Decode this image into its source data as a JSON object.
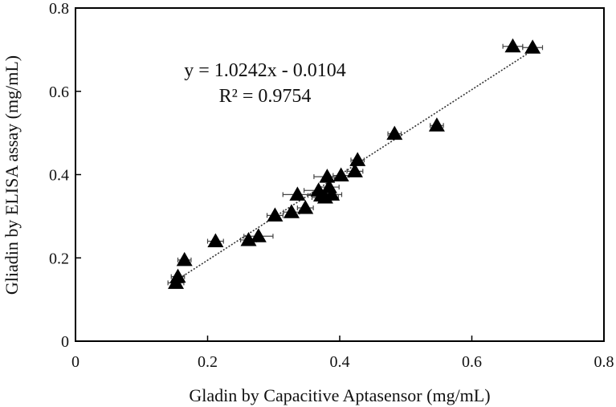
{
  "chart_data": {
    "type": "scatter",
    "xlabel": "Gladin by Capacitive Aptasensor (mg/mL)",
    "ylabel": "Gliadin by ELISA assay (mg/mL)",
    "xlim": [
      0,
      0.8
    ],
    "ylim": [
      0,
      0.8
    ],
    "x_ticks": [
      "0",
      "0.2",
      "0.4",
      "0.6",
      "0.8"
    ],
    "y_ticks": [
      "0",
      "0.2",
      "0.4",
      "0.6",
      "0.8"
    ],
    "grid": false,
    "marker": "triangle",
    "marker_color": "#000000",
    "trendline": {
      "style": "dotted",
      "slope": 1.0242,
      "intercept": -0.0104,
      "x_range": [
        0.15,
        0.69
      ]
    },
    "annotations": {
      "equation": "y = 1.0242x - 0.0104",
      "r_squared": "R² = 0.9754"
    },
    "points": [
      {
        "x": 0.152,
        "y": 0.14,
        "xerr": 0.012
      },
      {
        "x": 0.155,
        "y": 0.155,
        "xerr": 0.01
      },
      {
        "x": 0.165,
        "y": 0.195,
        "xerr": 0.01
      },
      {
        "x": 0.212,
        "y": 0.24,
        "xerr": 0.012
      },
      {
        "x": 0.262,
        "y": 0.243,
        "xerr": 0.012
      },
      {
        "x": 0.277,
        "y": 0.252,
        "xerr": 0.022
      },
      {
        "x": 0.302,
        "y": 0.302,
        "xerr": 0.012
      },
      {
        "x": 0.327,
        "y": 0.31,
        "xerr": 0.012
      },
      {
        "x": 0.336,
        "y": 0.352,
        "xerr": 0.022
      },
      {
        "x": 0.348,
        "y": 0.32,
        "xerr": 0.012
      },
      {
        "x": 0.368,
        "y": 0.362,
        "xerr": 0.022
      },
      {
        "x": 0.372,
        "y": 0.35,
        "xerr": 0.02
      },
      {
        "x": 0.378,
        "y": 0.345,
        "xerr": 0.02
      },
      {
        "x": 0.381,
        "y": 0.395,
        "xerr": 0.02
      },
      {
        "x": 0.384,
        "y": 0.37,
        "xerr": 0.015
      },
      {
        "x": 0.388,
        "y": 0.352,
        "xerr": 0.015
      },
      {
        "x": 0.402,
        "y": 0.398,
        "xerr": 0.012
      },
      {
        "x": 0.423,
        "y": 0.408,
        "xerr": 0.012
      },
      {
        "x": 0.427,
        "y": 0.435,
        "xerr": 0.01
      },
      {
        "x": 0.483,
        "y": 0.498,
        "xerr": 0.01
      },
      {
        "x": 0.547,
        "y": 0.518,
        "xerr": 0.01
      },
      {
        "x": 0.662,
        "y": 0.708,
        "xerr": 0.015
      },
      {
        "x": 0.692,
        "y": 0.705,
        "xerr": 0.015
      }
    ]
  }
}
